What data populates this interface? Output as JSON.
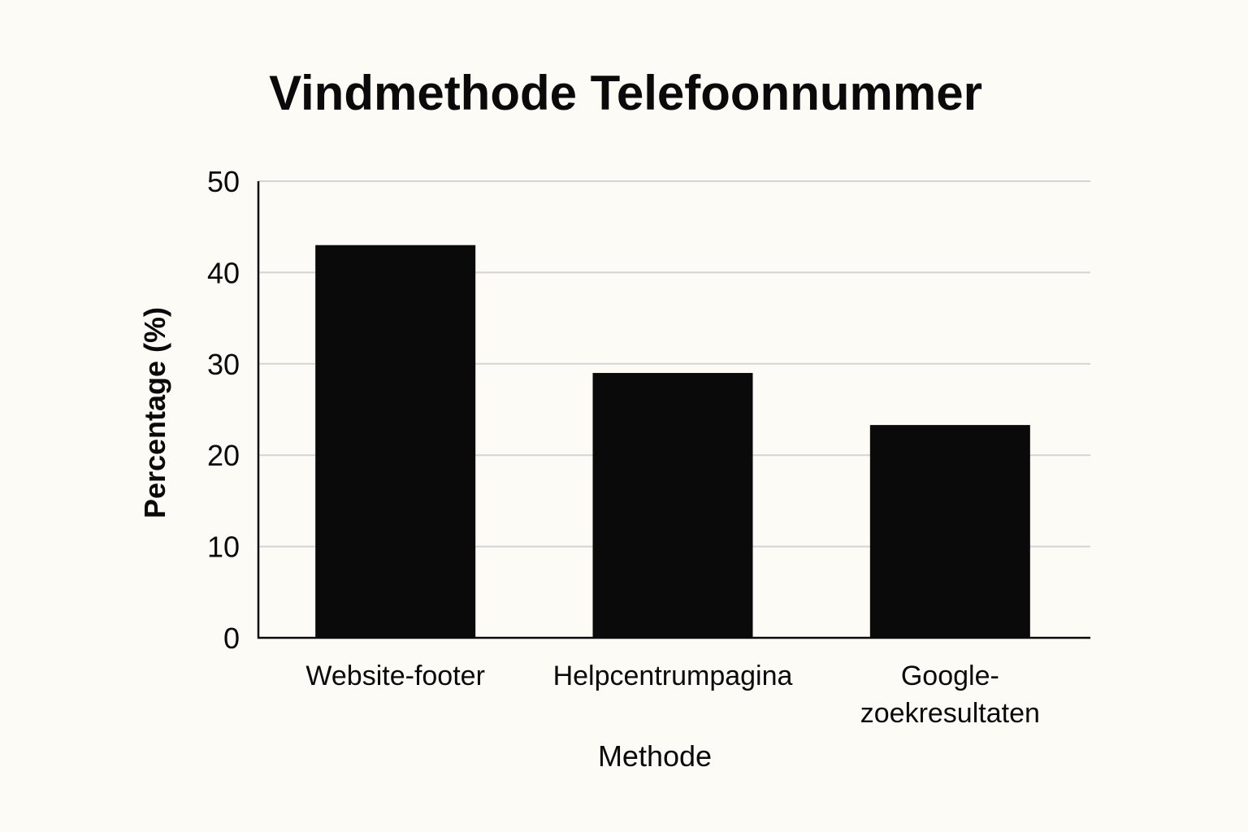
{
  "chart_data": {
    "type": "bar",
    "title": "Vindmethode Telefoonnummer",
    "xlabel": "Methode",
    "ylabel": "Percentage (%)",
    "categories": [
      [
        "Website-footer"
      ],
      [
        "Helpcentrumpagina"
      ],
      [
        "Google-",
        "zoekresultaten"
      ]
    ],
    "values": [
      43,
      29,
      23.3
    ],
    "ylim": [
      0,
      50
    ],
    "yticks": [
      0,
      10,
      20,
      30,
      40,
      50
    ],
    "grid": true,
    "legend": "none",
    "colors": {
      "bar": "#0a0a0a",
      "grid": "#d4d4d4",
      "axis": "#0a0a0a",
      "background": "#fdfbf6"
    }
  }
}
